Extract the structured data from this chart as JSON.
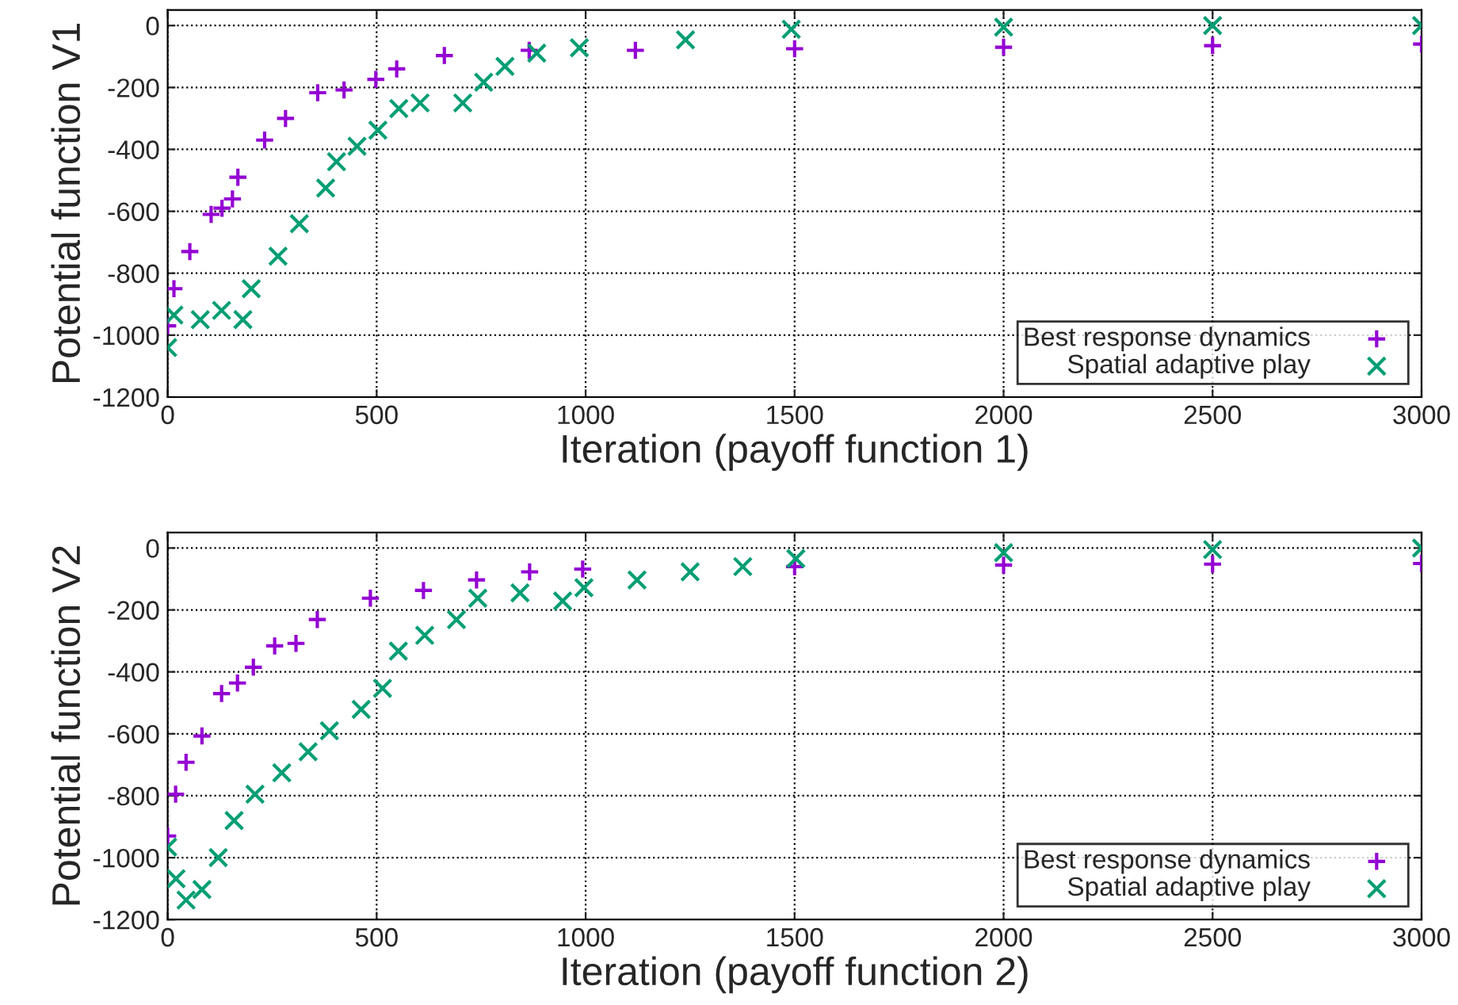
{
  "chart_data": [
    {
      "type": "scatter",
      "xlabel": "Iteration (payoff function 1)",
      "ylabel": "Potential function V1",
      "xlim": [
        0,
        3000
      ],
      "ylim": [
        -1200,
        50
      ],
      "xticks": [
        0,
        500,
        1000,
        1500,
        2000,
        2500,
        3000
      ],
      "yticks": [
        -1200,
        -1000,
        -800,
        -600,
        -400,
        -200,
        0
      ],
      "grid": true,
      "legend": "bottom right",
      "series": [
        {
          "name": "Best response dynamics",
          "color": "#9400d3",
          "marker": "plus",
          "x": [
            0,
            15,
            53,
            104,
            130,
            155,
            168,
            232,
            282,
            359,
            422,
            498,
            548,
            662,
            865,
            1119,
            1500,
            2000,
            2500,
            3000
          ],
          "values": [
            -970,
            -850,
            -730,
            -610,
            -590,
            -560,
            -490,
            -370,
            -300,
            -217,
            -208,
            -174,
            -140,
            -97,
            -80,
            -80,
            -75,
            -70,
            -65,
            -60
          ]
        },
        {
          "name": "Spatial adaptive play",
          "color": "#009e73",
          "marker": "cross",
          "x": [
            0,
            15,
            78,
            129,
            180,
            200,
            264,
            315,
            378,
            404,
            453,
            503,
            553,
            604,
            706,
            756,
            807,
            883,
            985,
            1239,
            1492,
            2000,
            2500,
            3000
          ],
          "values": [
            -1040,
            -935,
            -950,
            -920,
            -950,
            -850,
            -745,
            -640,
            -525,
            -440,
            -390,
            -338,
            -268,
            -250,
            -250,
            -183,
            -132,
            -89,
            -72,
            -46,
            -12,
            -5,
            0,
            0
          ]
        }
      ]
    },
    {
      "type": "scatter",
      "xlabel": "Iteration (payoff function 2)",
      "ylabel": "Potential function V2",
      "xlim": [
        0,
        3000
      ],
      "ylim": [
        -1200,
        50
      ],
      "xticks": [
        0,
        500,
        1000,
        1500,
        2000,
        2500,
        3000
      ],
      "yticks": [
        -1200,
        -1000,
        -800,
        -600,
        -400,
        -200,
        0
      ],
      "grid": true,
      "legend": "bottom right",
      "series": [
        {
          "name": "Best response dynamics",
          "color": "#9400d3",
          "marker": "plus",
          "x": [
            0,
            19,
            44,
            82,
            129,
            167,
            205,
            256,
            307,
            358,
            485,
            612,
            739,
            866,
            993,
            1500,
            2000,
            2500,
            3000
          ],
          "values": [
            -930,
            -795,
            -692,
            -607,
            -470,
            -436,
            -385,
            -316,
            -308,
            -231,
            -162,
            -137,
            -103,
            -77,
            -68,
            -60,
            -55,
            -52,
            -50
          ]
        },
        {
          "name": "Spatial adaptive play",
          "color": "#009e73",
          "marker": "cross",
          "x": [
            0,
            20,
            44,
            82,
            121,
            159,
            209,
            273,
            336,
            387,
            463,
            514,
            552,
            615,
            691,
            742,
            843,
            945,
            996,
            1123,
            1250,
            1376,
            1503,
            2000,
            2500,
            3000
          ],
          "values": [
            -966,
            -1068,
            -1137,
            -1103,
            -1000,
            -880,
            -795,
            -726,
            -658,
            -590,
            -521,
            -453,
            -333,
            -282,
            -231,
            -162,
            -145,
            -171,
            -128,
            -103,
            -77,
            -60,
            -34,
            -15,
            -5,
            0
          ]
        }
      ]
    }
  ]
}
